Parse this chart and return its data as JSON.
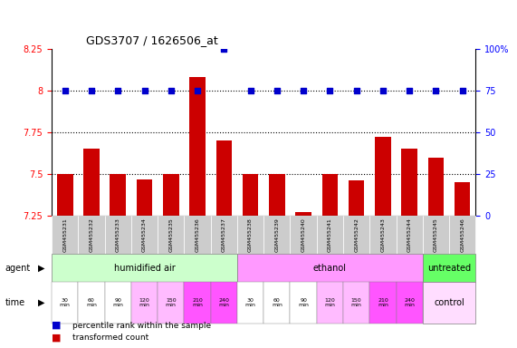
{
  "title": "GDS3707 / 1626506_at",
  "samples": [
    "GSM455231",
    "GSM455232",
    "GSM455233",
    "GSM455234",
    "GSM455235",
    "GSM455236",
    "GSM455237",
    "GSM455238",
    "GSM455239",
    "GSM455240",
    "GSM455241",
    "GSM455242",
    "GSM455243",
    "GSM455244",
    "GSM455245",
    "GSM455246"
  ],
  "bar_values": [
    7.5,
    7.65,
    7.5,
    7.47,
    7.5,
    8.08,
    7.7,
    7.5,
    7.5,
    7.27,
    7.5,
    7.46,
    7.72,
    7.65,
    7.6,
    7.45
  ],
  "dot_values": [
    75,
    75,
    75,
    75,
    75,
    75,
    100,
    75,
    75,
    75,
    75,
    75,
    75,
    75,
    75,
    75
  ],
  "bar_color": "#cc0000",
  "dot_color": "#0000cc",
  "ylim_left": [
    7.25,
    8.25
  ],
  "ylim_right": [
    0,
    100
  ],
  "yticks_left": [
    7.25,
    7.5,
    7.75,
    8.0,
    8.25
  ],
  "yticks_right": [
    0,
    25,
    50,
    75,
    100
  ],
  "ytick_labels_left": [
    "7.25",
    "7.5",
    "7.75",
    "8",
    "8.25"
  ],
  "ytick_labels_right": [
    "0",
    "25",
    "50",
    "75",
    "100%"
  ],
  "hlines": [
    7.5,
    7.75,
    8.0
  ],
  "agent_groups": [
    {
      "label": "humidified air",
      "start": 0,
      "end": 7,
      "color": "#ccffcc"
    },
    {
      "label": "ethanol",
      "start": 7,
      "end": 14,
      "color": "#ff99ff"
    },
    {
      "label": "untreated",
      "start": 14,
      "end": 16,
      "color": "#00cc00"
    }
  ],
  "time_labels": [
    "30\nmin",
    "60\nmin",
    "90\nmin",
    "120\nmin",
    "150\nmin",
    "210\nmin",
    "240\nmin",
    "30\nmin",
    "60\nmin",
    "90\nmin",
    "120\nmin",
    "150\nmin",
    "210\nmin",
    "240\nmin"
  ],
  "time_colors_air": [
    "#ffffff",
    "#ffffff",
    "#ffffff",
    "#ffaaff",
    "#ffaaff",
    "#ff55ff",
    "#ff55ff"
  ],
  "time_colors_eth": [
    "#ffffff",
    "#ffffff",
    "#ffffff",
    "#ffaaff",
    "#ffaaff",
    "#ff55ff",
    "#ff55ff"
  ],
  "control_label": "control",
  "agent_label": "agent",
  "time_label": "time",
  "legend_bar": "transformed count",
  "legend_dot": "percentile rank within the sample",
  "bar_width": 0.6,
  "background_color": "#ffffff",
  "plot_bg": "#ffffff"
}
